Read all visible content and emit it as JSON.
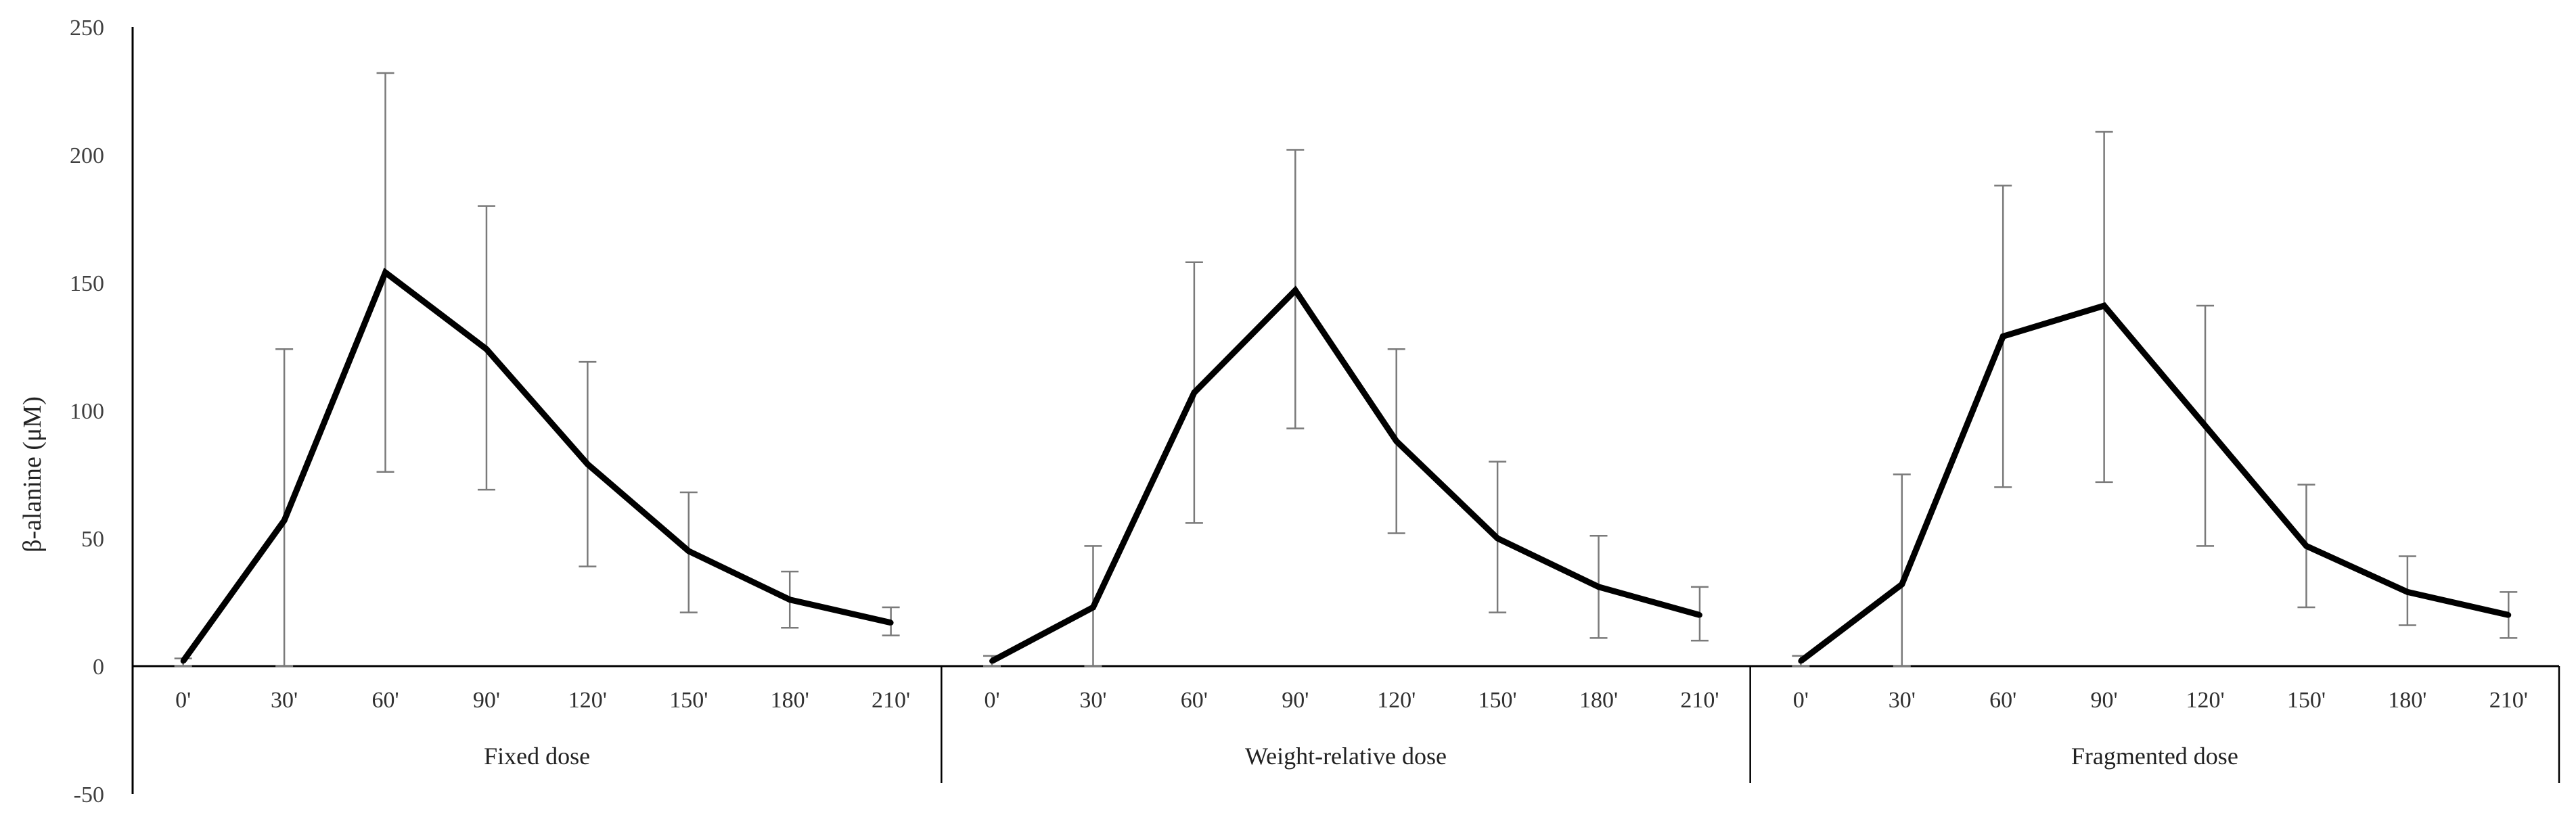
{
  "chart_data": {
    "type": "line",
    "title": "",
    "ylabel": "β-alanine (μM)",
    "xlabel": "",
    "ylim": [
      -50,
      250
    ],
    "yticks": [
      -50,
      0,
      50,
      100,
      150,
      200,
      250
    ],
    "grid": false,
    "time_labels": [
      "0'",
      "30'",
      "60'",
      "90'",
      "120'",
      "150'",
      "180'",
      "210'"
    ],
    "groups": [
      {
        "name": "Fixed dose",
        "values": [
          2,
          57,
          154,
          124,
          79,
          45,
          26,
          17
        ],
        "error_upper": [
          3,
          124,
          232,
          180,
          119,
          68,
          37,
          23
        ],
        "error_lower": [
          0,
          0,
          76,
          69,
          39,
          21,
          15,
          12
        ]
      },
      {
        "name": "Weight-relative dose",
        "values": [
          2,
          23,
          107,
          147,
          88,
          50,
          31,
          20
        ],
        "error_upper": [
          4,
          47,
          158,
          202,
          124,
          80,
          51,
          31
        ],
        "error_lower": [
          0,
          0,
          56,
          93,
          52,
          21,
          11,
          10
        ]
      },
      {
        "name": "Fragmented dose",
        "values": [
          2,
          32,
          129,
          141,
          94,
          47,
          29,
          20
        ],
        "error_upper": [
          4,
          75,
          188,
          209,
          141,
          71,
          43,
          29
        ],
        "error_lower": [
          0,
          0,
          70,
          72,
          47,
          23,
          16,
          11
        ]
      }
    ]
  }
}
